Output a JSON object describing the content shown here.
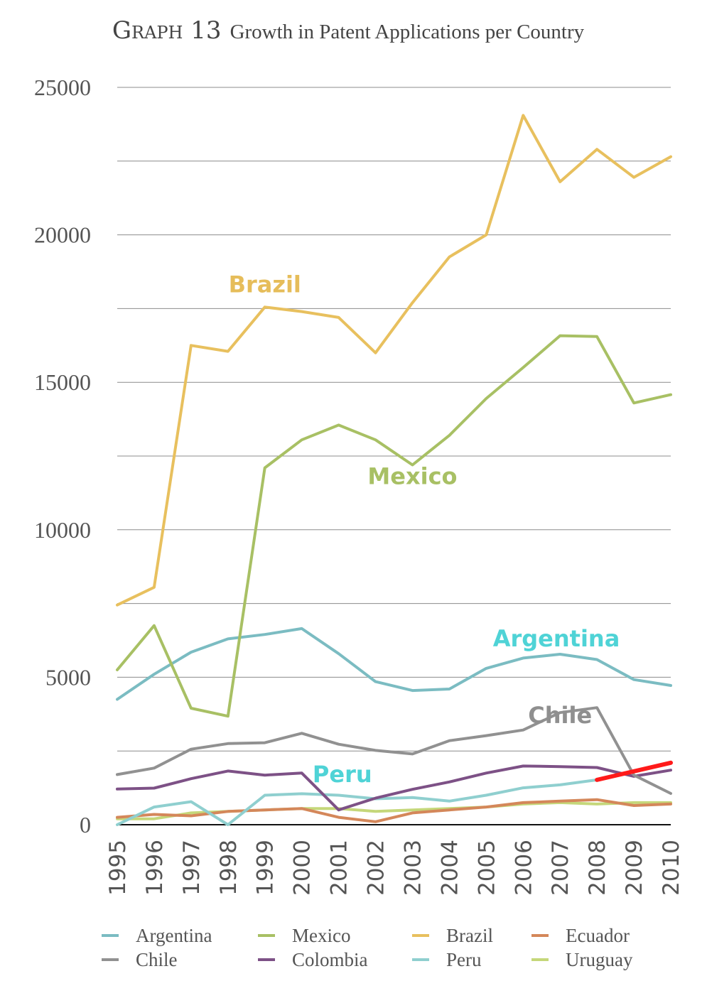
{
  "title": {
    "prefix": "Graph 13",
    "text": "Growth in Patent Applications per Country"
  },
  "chart_data": {
    "type": "line",
    "title": "Graph 13 Growth in Patent Applications per Country",
    "xlabel": "",
    "ylabel": "",
    "ylim": [
      0,
      25000
    ],
    "yticks": [
      "0",
      "5000",
      "10000",
      "15000",
      "20000",
      "25000"
    ],
    "gridlines_every": 2500,
    "grid": true,
    "legend_position": "bottom",
    "x": [
      "1995",
      "1996",
      "1997",
      "1998",
      "1999",
      "2000",
      "2001",
      "2002",
      "2003",
      "2004",
      "2005",
      "2006",
      "2007",
      "2008",
      "2009",
      "2010"
    ],
    "series": [
      {
        "name": "Argentina",
        "color": "#7bbcc2",
        "values": [
          4250,
          5100,
          5850,
          6300,
          6450,
          6650,
          5800,
          4850,
          4550,
          4600,
          5300,
          5650,
          5780,
          5600,
          4920,
          4720
        ]
      },
      {
        "name": "Mexico",
        "color": "#a8c064",
        "values": [
          5250,
          6750,
          3950,
          3680,
          12100,
          13050,
          13550,
          13050,
          12200,
          13200,
          14450,
          15500,
          16580,
          16550,
          14300,
          14580
        ]
      },
      {
        "name": "Brazil",
        "color": "#e8c05e",
        "values": [
          7450,
          8050,
          16250,
          16050,
          17550,
          17400,
          17200,
          16000,
          17700,
          19250,
          20000,
          24050,
          21800,
          22900,
          21950,
          22650
        ]
      },
      {
        "name": "Ecuador",
        "color": "#d4875a",
        "values": [
          250,
          350,
          300,
          450,
          500,
          550,
          250,
          100,
          400,
          500,
          600,
          750,
          800,
          850,
          650,
          700
        ]
      },
      {
        "name": "Chile",
        "color": "#919191",
        "values": [
          1700,
          1920,
          2560,
          2750,
          2780,
          3100,
          2730,
          2520,
          2400,
          2850,
          3020,
          3210,
          3800,
          3970,
          1680,
          1060
        ]
      },
      {
        "name": "Colombia",
        "color": "#7d5186",
        "values": [
          1210,
          1240,
          1560,
          1820,
          1680,
          1750,
          500,
          900,
          1200,
          1450,
          1750,
          1990,
          1970,
          1940,
          1640,
          1850
        ]
      },
      {
        "name": "Peru",
        "color": "#8fcfcf",
        "values": [
          0,
          600,
          780,
          0,
          1000,
          1050,
          1000,
          880,
          920,
          800,
          1000,
          1250,
          1350,
          1520,
          null,
          null
        ]
      },
      {
        "name": "Uruguay",
        "color": "#c5d77a",
        "values": [
          200,
          200,
          400,
          450,
          500,
          550,
          550,
          450,
          500,
          550,
          600,
          700,
          750,
          700,
          750,
          750
        ]
      }
    ],
    "annotations": [
      {
        "text": "Brazil",
        "series": "Brazil",
        "color": "#e6bd5a",
        "anchor": {
          "x": "1999",
          "y": 18050
        }
      },
      {
        "text": "Mexico",
        "series": "Mexico",
        "color": "#a8c064",
        "anchor": {
          "x": "2003",
          "y": 11550
        }
      },
      {
        "text": "Argentina",
        "series": "Argentina",
        "color": "#4fd3d6",
        "anchor": {
          "x": "2006.9",
          "y": 6050
        }
      },
      {
        "text": "Chile",
        "series": "Chile",
        "color": "#8f8f8f",
        "anchor": {
          "x": "2007",
          "y": 3450
        }
      },
      {
        "text": "Peru",
        "series": "Peru",
        "color": "#4fd3d6",
        "anchor": {
          "x": "2001.1",
          "y": 1450
        }
      }
    ],
    "highlight": {
      "color": "#ff1a1a",
      "from": {
        "x": "2008",
        "y": 1520
      },
      "to": {
        "x": "2010",
        "y": 2100
      }
    }
  },
  "legend": [
    {
      "label": "Argentina",
      "color": "#7bbcc2"
    },
    {
      "label": "Mexico",
      "color": "#a8c064"
    },
    {
      "label": "Brazil",
      "color": "#e8c05e"
    },
    {
      "label": "Ecuador",
      "color": "#d4875a"
    },
    {
      "label": "Chile",
      "color": "#919191"
    },
    {
      "label": "Colombia",
      "color": "#7d5186"
    },
    {
      "label": "Peru",
      "color": "#8fcfcf"
    },
    {
      "label": "Uruguay",
      "color": "#c5d77a"
    }
  ]
}
